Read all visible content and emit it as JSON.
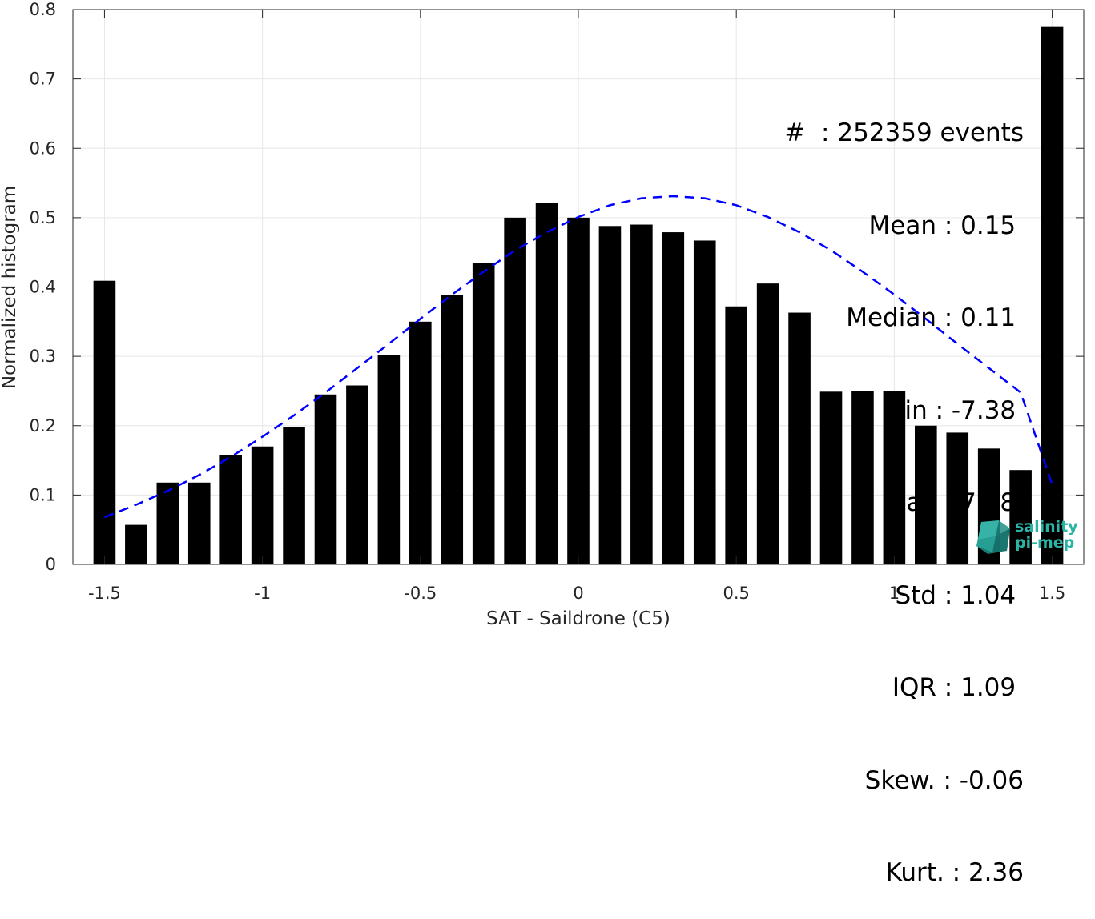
{
  "chart_data": {
    "type": "bar",
    "xlabel": "SAT - Saildrone (C5)",
    "ylabel": "Normalized histogram",
    "xlim": [
      -1.6,
      1.6
    ],
    "ylim": [
      0,
      0.8
    ],
    "xticks": [
      "-1.5",
      "-1",
      "-0.5",
      "0",
      "0.5",
      "1",
      "1.5"
    ],
    "yticks": [
      "0",
      "0.1",
      "0.2",
      "0.3",
      "0.4",
      "0.5",
      "0.6",
      "0.7",
      "0.8"
    ],
    "grid": true,
    "bar_color": "#000000",
    "bars": {
      "x": [
        -1.5,
        -1.4,
        -1.3,
        -1.2,
        -1.1,
        -1.0,
        -0.9,
        -0.8,
        -0.7,
        -0.6,
        -0.5,
        -0.4,
        -0.3,
        -0.2,
        -0.1,
        0.0,
        0.1,
        0.2,
        0.3,
        0.4,
        0.5,
        0.6,
        0.7,
        0.8,
        0.9,
        1.0,
        1.1,
        1.2,
        1.3,
        1.4,
        1.5
      ],
      "values": [
        0.409,
        0.057,
        0.118,
        0.118,
        0.157,
        0.17,
        0.198,
        0.245,
        0.258,
        0.302,
        0.35,
        0.389,
        0.435,
        0.5,
        0.521,
        0.5,
        0.488,
        0.49,
        0.479,
        0.467,
        0.372,
        0.405,
        0.363,
        0.249,
        0.25,
        0.25,
        0.2,
        0.19,
        0.167,
        0.136,
        0.775
      ]
    },
    "fit_curve": {
      "style": "dashed",
      "color": "#0000ff",
      "x": [
        -1.5,
        -1.4,
        -1.3,
        -1.2,
        -1.1,
        -1.0,
        -0.9,
        -0.8,
        -0.7,
        -0.6,
        -0.5,
        -0.4,
        -0.3,
        -0.2,
        -0.1,
        0.0,
        0.1,
        0.2,
        0.3,
        0.4,
        0.5,
        0.6,
        0.7,
        0.8,
        0.9,
        1.0,
        1.1,
        1.2,
        1.3,
        1.4,
        1.5
      ],
      "values": [
        0.068,
        0.086,
        0.106,
        0.129,
        0.155,
        0.184,
        0.215,
        0.248,
        0.283,
        0.318,
        0.354,
        0.389,
        0.422,
        0.453,
        0.479,
        0.501,
        0.518,
        0.528,
        0.531,
        0.528,
        0.518,
        0.501,
        0.479,
        0.453,
        0.422,
        0.389,
        0.354,
        0.318,
        0.283,
        0.248,
        0.115
      ]
    }
  },
  "stats": [
    "#  : 252359 events",
    "Mean : 0.15 ",
    "Median : 0.11 ",
    "Min : -7.38 ",
    "Max : 7.38 ",
    "Std : 1.04 ",
    "IQR : 1.09 ",
    "Skew. : -0.06",
    "Kurt. : 2.36"
  ],
  "logo": {
    "line1": "salinity",
    "line2": "pi-mep"
  }
}
